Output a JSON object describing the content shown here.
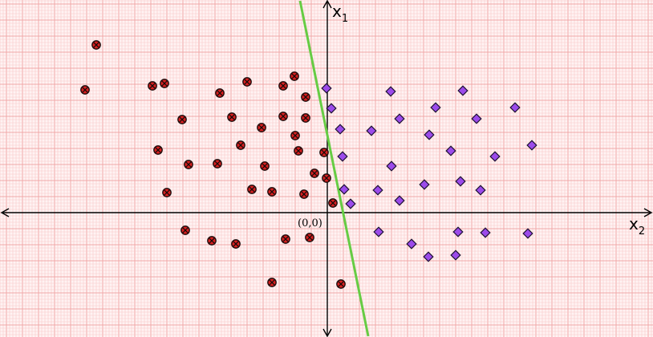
{
  "chart_data": {
    "type": "scatter",
    "title": "",
    "grid": true,
    "xlabel": {
      "base": "x",
      "sub": "2"
    },
    "ylabel": {
      "base": "x",
      "sub": "1"
    },
    "origin_label": "(0,0)",
    "xlim": [
      -20.3,
      20.2
    ],
    "ylim": [
      -7.7,
      13.2
    ],
    "colors": {
      "background": "#fff3f3",
      "grid_minor": "#f8caca",
      "grid_major": "#f0a8a8",
      "class_red": "#d62020",
      "class_purple": "#9b4bea",
      "boundary": "#66cc44",
      "axis": "#000000"
    },
    "boundary_line": {
      "x": [
        -1.7,
        2.55
      ],
      "y": [
        13.2,
        -7.7
      ]
    },
    "series": [
      {
        "marker": "circle-x",
        "points": [
          [
            -14.4,
            10.45
          ],
          [
            -15.1,
            7.65
          ],
          [
            -10.9,
            7.9
          ],
          [
            -10.15,
            8.05
          ],
          [
            -6.7,
            7.45
          ],
          [
            -5.0,
            8.15
          ],
          [
            -2.75,
            7.9
          ],
          [
            -2.05,
            8.5
          ],
          [
            -1.35,
            7.2
          ],
          [
            -9.05,
            5.8
          ],
          [
            -5.95,
            5.95
          ],
          [
            -2.75,
            6.0
          ],
          [
            -1.35,
            5.9
          ],
          [
            -4.1,
            5.3
          ],
          [
            -2.0,
            4.8
          ],
          [
            -5.4,
            4.2
          ],
          [
            -1.8,
            3.85
          ],
          [
            -10.55,
            3.9
          ],
          [
            -8.65,
            3.0
          ],
          [
            -6.85,
            3.05
          ],
          [
            -3.9,
            2.9
          ],
          [
            -0.2,
            3.75
          ],
          [
            -0.8,
            2.45
          ],
          [
            -0.05,
            2.15
          ],
          [
            -10.0,
            1.25
          ],
          [
            -4.7,
            1.45
          ],
          [
            -3.45,
            1.3
          ],
          [
            -1.45,
            1.15
          ],
          [
            0.35,
            0.6
          ],
          [
            -8.85,
            -1.1
          ],
          [
            -7.2,
            -1.75
          ],
          [
            -5.7,
            -1.95
          ],
          [
            -2.6,
            -1.65
          ],
          [
            -1.1,
            -1.55
          ],
          [
            -3.45,
            -4.35
          ],
          [
            0.85,
            -4.45
          ]
        ]
      },
      {
        "marker": "diamond",
        "points": [
          [
            -0.05,
            7.75
          ],
          [
            3.95,
            7.55
          ],
          [
            8.45,
            7.6
          ],
          [
            0.25,
            6.5
          ],
          [
            6.75,
            6.55
          ],
          [
            11.7,
            6.55
          ],
          [
            4.5,
            5.85
          ],
          [
            9.3,
            5.85
          ],
          [
            0.8,
            5.2
          ],
          [
            2.75,
            5.1
          ],
          [
            6.35,
            4.85
          ],
          [
            7.7,
            3.85
          ],
          [
            10.45,
            3.5
          ],
          [
            12.75,
            4.2
          ],
          [
            0.95,
            3.5
          ],
          [
            4.0,
            2.9
          ],
          [
            6.05,
            1.75
          ],
          [
            8.3,
            1.95
          ],
          [
            1.05,
            1.45
          ],
          [
            3.15,
            1.4
          ],
          [
            9.55,
            1.4
          ],
          [
            4.5,
            0.75
          ],
          [
            1.45,
            0.55
          ],
          [
            3.2,
            -1.2
          ],
          [
            8.15,
            -1.2
          ],
          [
            9.85,
            -1.25
          ],
          [
            12.5,
            -1.3
          ],
          [
            5.25,
            -1.95
          ],
          [
            6.3,
            -2.75
          ],
          [
            8.0,
            -2.65
          ]
        ]
      }
    ]
  }
}
